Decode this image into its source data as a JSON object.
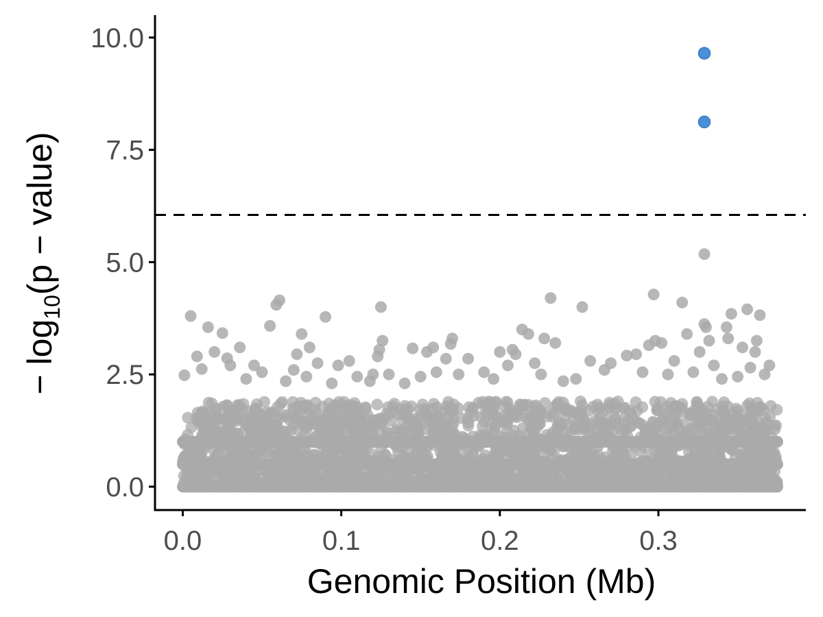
{
  "chart_data": {
    "type": "scatter",
    "title": "",
    "xlabel": "Genomic Position (Mb)",
    "ylabel_parts": [
      "− log",
      "10",
      "(p − value)"
    ],
    "xlim": [
      -0.0175,
      0.393
    ],
    "ylim": [
      -0.52,
      10.5
    ],
    "x_ticks": [
      0.0,
      0.1,
      0.2,
      0.3
    ],
    "x_tick_labels": [
      "0.0",
      "0.1",
      "0.2",
      "0.3"
    ],
    "y_ticks": [
      0.0,
      2.5,
      5.0,
      7.5,
      10.0
    ],
    "y_tick_labels": [
      "0.0",
      "2.5",
      "5.0",
      "7.5",
      "10.0"
    ],
    "threshold": 6.05,
    "background_range": {
      "x": [
        0.0,
        0.375
      ],
      "y": [
        0.0,
        1.9
      ]
    },
    "colors": {
      "background": "#aaaaaa",
      "significant": "#4a90d9",
      "threshold": "#000000",
      "axis": "#000000"
    },
    "series": [
      {
        "role": "background",
        "points": [
          [
            0.001,
            2.48
          ],
          [
            0.005,
            3.8
          ],
          [
            0.009,
            2.9
          ],
          [
            0.012,
            2.62
          ],
          [
            0.016,
            3.55
          ],
          [
            0.02,
            3.0
          ],
          [
            0.025,
            3.42
          ],
          [
            0.028,
            2.86
          ],
          [
            0.03,
            2.7
          ],
          [
            0.036,
            3.1
          ],
          [
            0.04,
            2.4
          ],
          [
            0.045,
            2.7
          ],
          [
            0.05,
            2.55
          ],
          [
            0.055,
            3.58
          ],
          [
            0.059,
            4.05
          ],
          [
            0.061,
            4.15
          ],
          [
            0.065,
            2.35
          ],
          [
            0.07,
            2.6
          ],
          [
            0.072,
            2.95
          ],
          [
            0.075,
            3.4
          ],
          [
            0.078,
            2.45
          ],
          [
            0.08,
            3.1
          ],
          [
            0.085,
            2.75
          ],
          [
            0.09,
            3.78
          ],
          [
            0.094,
            2.3
          ],
          [
            0.098,
            2.7
          ],
          [
            0.105,
            2.8
          ],
          [
            0.11,
            2.45
          ],
          [
            0.118,
            2.35
          ],
          [
            0.12,
            2.5
          ],
          [
            0.123,
            2.9
          ],
          [
            0.124,
            3.05
          ],
          [
            0.125,
            4.0
          ],
          [
            0.126,
            3.25
          ],
          [
            0.13,
            2.5
          ],
          [
            0.14,
            2.3
          ],
          [
            0.145,
            3.08
          ],
          [
            0.15,
            2.45
          ],
          [
            0.154,
            3.0
          ],
          [
            0.158,
            3.1
          ],
          [
            0.16,
            2.55
          ],
          [
            0.166,
            2.85
          ],
          [
            0.169,
            3.18
          ],
          [
            0.17,
            3.3
          ],
          [
            0.174,
            2.5
          ],
          [
            0.18,
            2.85
          ],
          [
            0.19,
            2.55
          ],
          [
            0.196,
            2.4
          ],
          [
            0.2,
            3.0
          ],
          [
            0.205,
            2.7
          ],
          [
            0.208,
            3.05
          ],
          [
            0.21,
            2.95
          ],
          [
            0.214,
            3.5
          ],
          [
            0.218,
            3.4
          ],
          [
            0.222,
            2.75
          ],
          [
            0.226,
            2.5
          ],
          [
            0.228,
            3.3
          ],
          [
            0.232,
            4.2
          ],
          [
            0.235,
            3.2
          ],
          [
            0.24,
            2.35
          ],
          [
            0.248,
            2.4
          ],
          [
            0.252,
            4.0
          ],
          [
            0.257,
            2.8
          ],
          [
            0.266,
            2.6
          ],
          [
            0.27,
            2.75
          ],
          [
            0.28,
            2.92
          ],
          [
            0.286,
            2.95
          ],
          [
            0.29,
            2.55
          ],
          [
            0.294,
            3.15
          ],
          [
            0.297,
            4.28
          ],
          [
            0.298,
            3.25
          ],
          [
            0.302,
            3.2
          ],
          [
            0.306,
            2.5
          ],
          [
            0.31,
            2.8
          ],
          [
            0.315,
            4.1
          ],
          [
            0.318,
            3.4
          ],
          [
            0.322,
            2.55
          ],
          [
            0.326,
            3.0
          ],
          [
            0.329,
            3.62
          ],
          [
            0.33,
            3.55
          ],
          [
            0.332,
            3.25
          ],
          [
            0.335,
            2.7
          ],
          [
            0.34,
            2.4
          ],
          [
            0.343,
            3.55
          ],
          [
            0.344,
            3.3
          ],
          [
            0.346,
            3.85
          ],
          [
            0.35,
            2.45
          ],
          [
            0.353,
            3.1
          ],
          [
            0.356,
            3.95
          ],
          [
            0.358,
            2.65
          ],
          [
            0.361,
            3.0
          ],
          [
            0.362,
            3.25
          ],
          [
            0.364,
            3.82
          ],
          [
            0.367,
            2.5
          ],
          [
            0.37,
            2.7
          ],
          [
            0.329,
            5.18
          ]
        ]
      },
      {
        "role": "significant",
        "points": [
          [
            0.329,
            9.65
          ],
          [
            0.329,
            8.12
          ]
        ]
      }
    ]
  }
}
